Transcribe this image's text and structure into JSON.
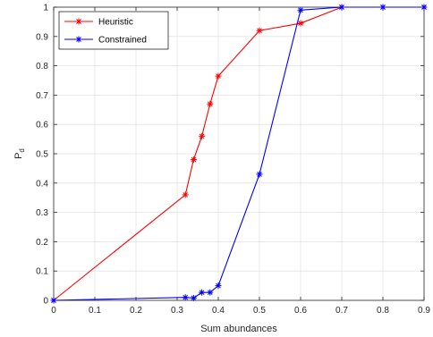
{
  "chart_data": {
    "type": "line",
    "title": "",
    "xlabel": "Sum abundances",
    "ylabel": "P",
    "ylabel_subscript": "d",
    "xlim": [
      0,
      0.9
    ],
    "ylim": [
      0,
      1
    ],
    "xticks": [
      "0",
      "0.1",
      "0.2",
      "0.3",
      "0.4",
      "0.5",
      "0.6",
      "0.7",
      "0.8",
      "0.9"
    ],
    "yticks": [
      "0",
      "0.1",
      "0.2",
      "0.3",
      "0.4",
      "0.5",
      "0.6",
      "0.7",
      "0.8",
      "0.9",
      "1"
    ],
    "grid": true,
    "legend_position": "top-left",
    "series": [
      {
        "name": "Heuristic",
        "color": "#ff0000",
        "marker": "asterisk",
        "x": [
          0,
          0.32,
          0.34,
          0.36,
          0.38,
          0.4,
          0.5,
          0.6,
          0.7,
          0.8,
          0.9
        ],
        "y": [
          0,
          0.36,
          0.48,
          0.56,
          0.67,
          0.765,
          0.92,
          0.945,
          1,
          1,
          1
        ]
      },
      {
        "name": "Constrained",
        "color": "#0000ff",
        "marker": "asterisk",
        "x": [
          0,
          0.32,
          0.34,
          0.36,
          0.38,
          0.4,
          0.5,
          0.6,
          0.7,
          0.8,
          0.9
        ],
        "y": [
          0,
          0.01,
          0.008,
          0.027,
          0.027,
          0.05,
          0.43,
          0.99,
          1,
          1,
          1
        ]
      }
    ]
  }
}
